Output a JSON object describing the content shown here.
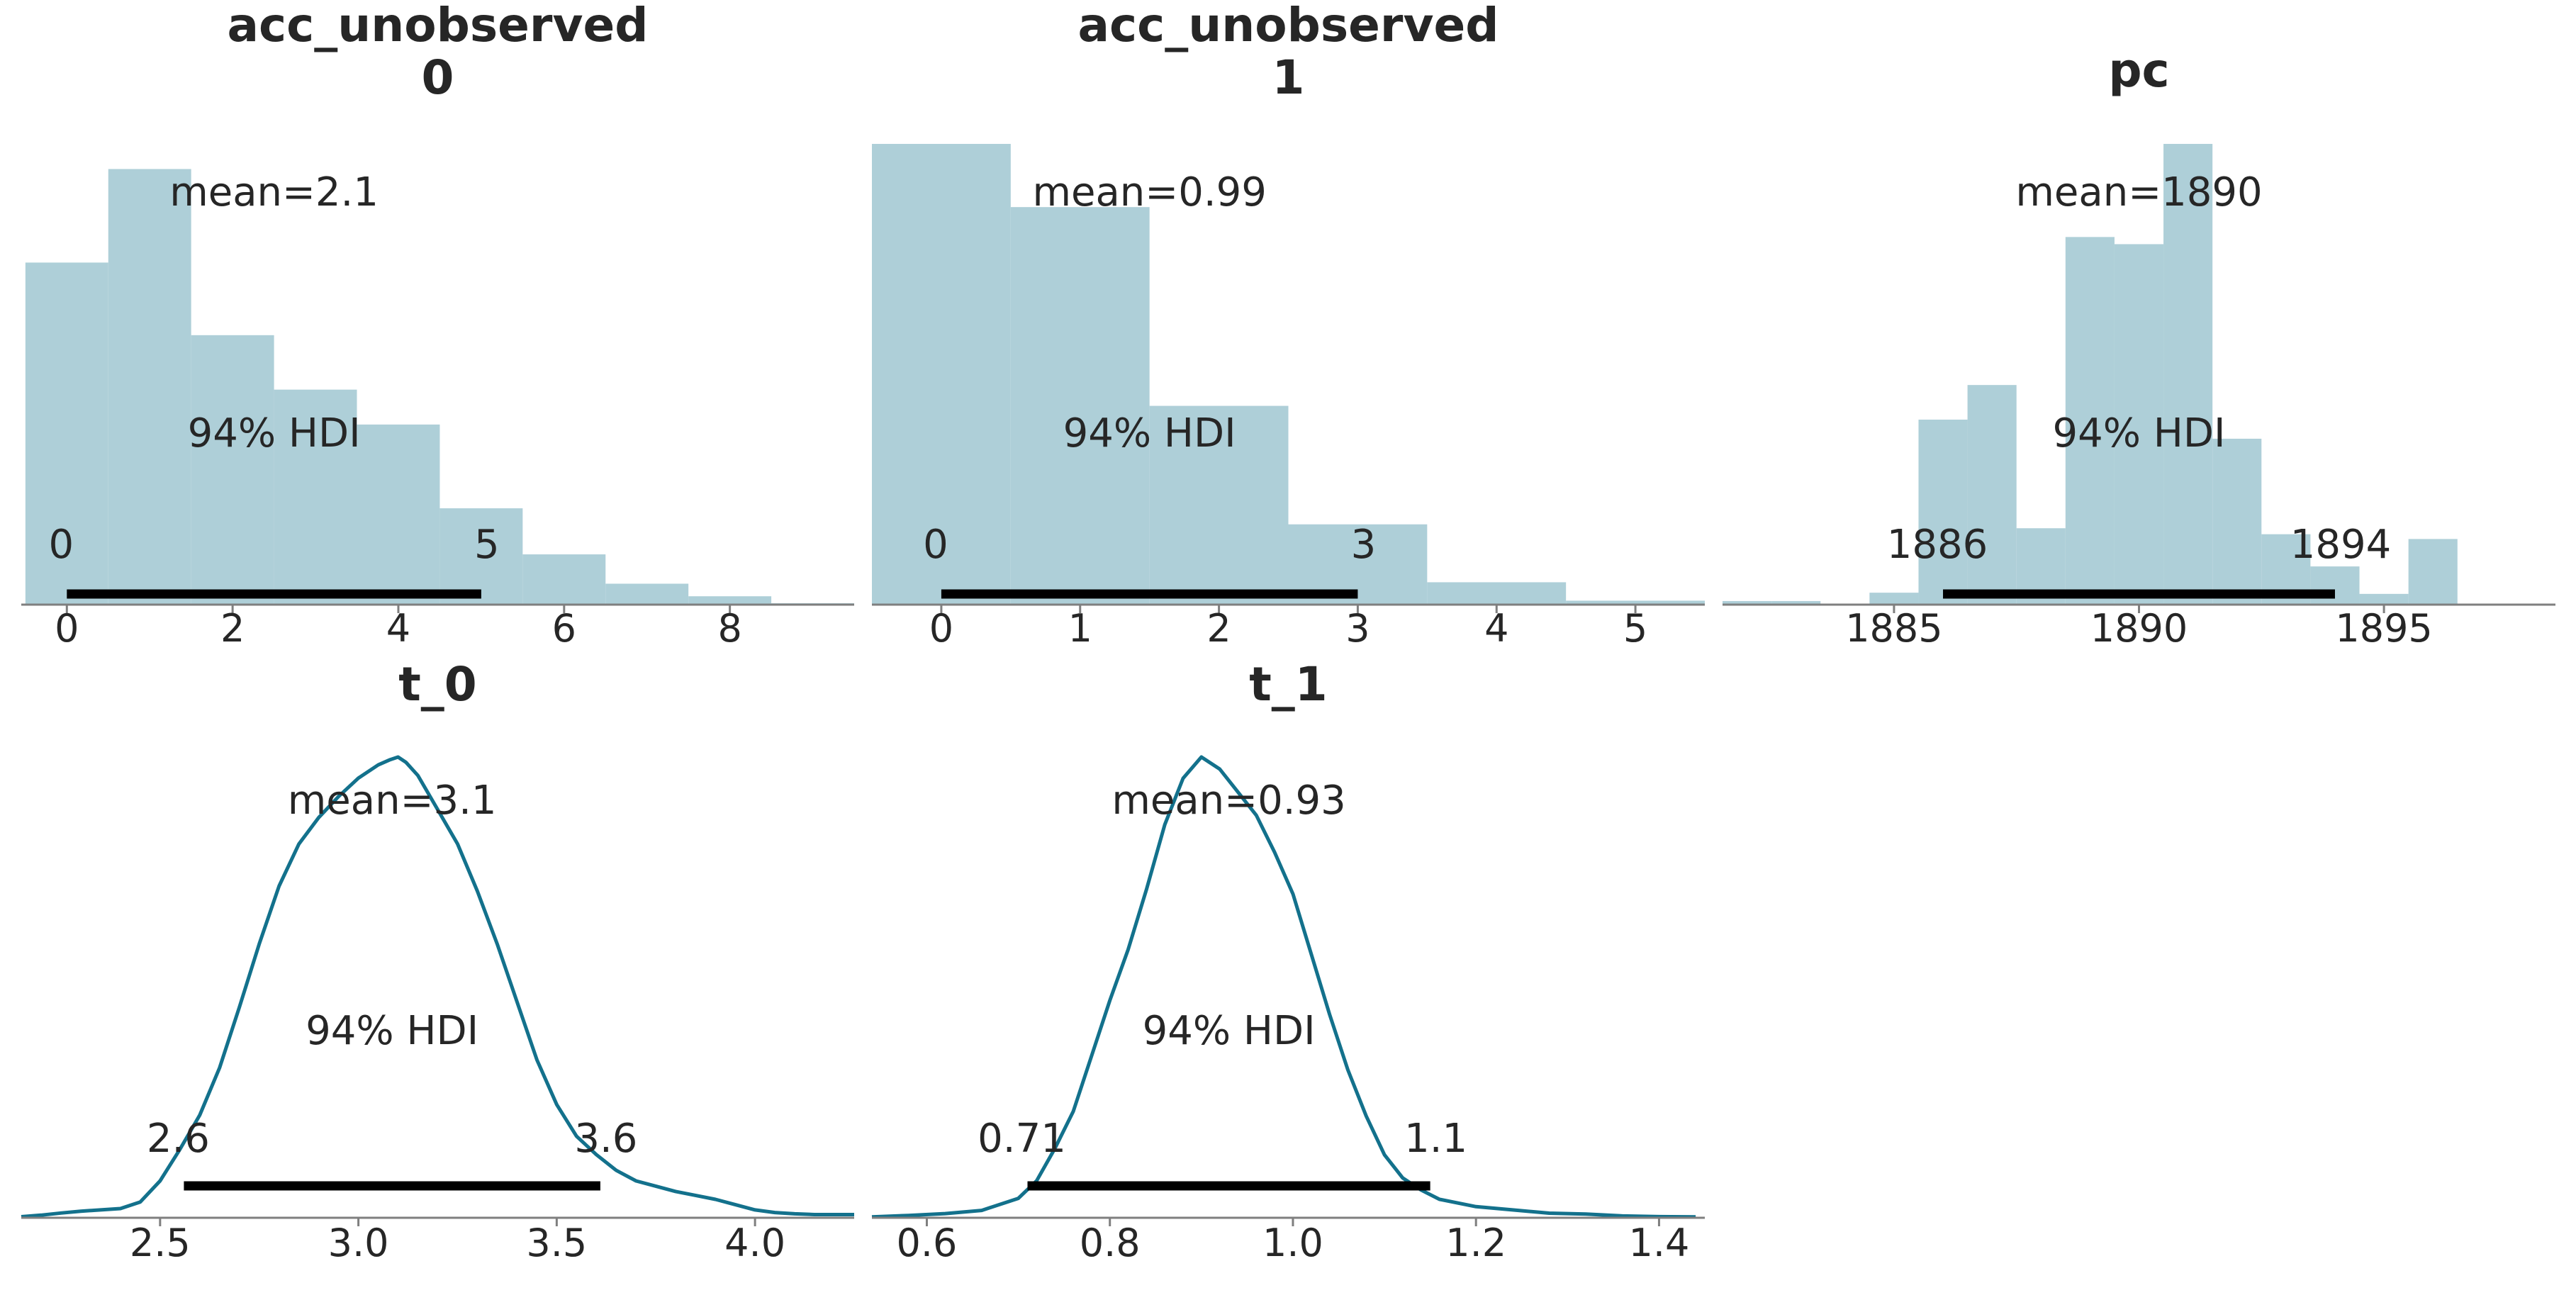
{
  "chart_data": [
    {
      "type": "bar",
      "title_lines": [
        "acc_unobserved",
        "0"
      ],
      "color": "#aecfd8",
      "bin_edges": [
        -0.5,
        0.5,
        1.5,
        2.5,
        3.5,
        4.5,
        5.5,
        6.5,
        7.5,
        8.5,
        9.5
      ],
      "values": [
        0.245,
        0.312,
        0.193,
        0.154,
        0.129,
        0.069,
        0.036,
        0.015,
        0.006,
        0.001
      ],
      "xlim": [
        -0.55,
        9.5
      ],
      "ylim": [
        0,
        0.33
      ],
      "xticks": [
        0,
        2,
        4,
        6,
        8
      ],
      "xtick_labels": [
        "0",
        "2",
        "4",
        "6",
        "8"
      ],
      "mean_label": "mean=2.1",
      "hdi_label": "94% HDI",
      "hdi": [
        0,
        5
      ],
      "hdi_low_label": "0",
      "hdi_high_label": "5"
    },
    {
      "type": "bar",
      "title_lines": [
        "acc_unobserved",
        "1"
      ],
      "color": "#aecfd8",
      "bin_edges": [
        -0.5,
        0.5,
        1.5,
        2.5,
        3.5,
        4.5,
        5.5
      ],
      "values": [
        0.35,
        0.302,
        0.151,
        0.061,
        0.017,
        0.003
      ],
      "xlim": [
        -0.5,
        5.5
      ],
      "ylim": [
        0,
        0.35
      ],
      "xticks": [
        0,
        1,
        2,
        3,
        4,
        5
      ],
      "xtick_labels": [
        "0",
        "1",
        "2",
        "3",
        "4",
        "5"
      ],
      "mean_label": "mean=0.99",
      "hdi_label": "94% HDI",
      "hdi": [
        0,
        3
      ],
      "hdi_low_label": "0",
      "hdi_high_label": "3"
    },
    {
      "type": "bar",
      "title_lines": [
        "pc"
      ],
      "color": "#aecfd8",
      "bin_edges": [
        1881.5,
        1882.5,
        1883.5,
        1884.5,
        1885.5,
        1886.5,
        1887.5,
        1888.5,
        1889.5,
        1890.5,
        1891.5,
        1892.5,
        1893.5,
        1894.5,
        1895.5,
        1896.5,
        1897.5
      ],
      "values": [
        0.003,
        0.003,
        0.0,
        0.01,
        0.155,
        0.184,
        0.064,
        0.308,
        0.302,
        0.386,
        0.139,
        0.059,
        0.032,
        0.009,
        0.055,
        0.0
      ],
      "xlim": [
        1881.5,
        1898.5
      ],
      "ylim": [
        0,
        0.386
      ],
      "xticks": [
        1885,
        1890,
        1895
      ],
      "xtick_labels": [
        "1885",
        "1890",
        "1895"
      ],
      "mean_label": "mean=1890",
      "hdi_label": "94% HDI",
      "hdi": [
        1886,
        1894
      ],
      "hdi_low_label": "1886",
      "hdi_high_label": "1894"
    },
    {
      "type": "line",
      "title_lines": [
        "t_0"
      ],
      "color": "#13718c",
      "x": [
        2.15,
        2.2,
        2.25,
        2.3,
        2.35,
        2.4,
        2.45,
        2.5,
        2.55,
        2.6,
        2.65,
        2.7,
        2.75,
        2.8,
        2.85,
        2.9,
        2.95,
        3.0,
        3.05,
        3.08,
        3.1,
        3.12,
        3.15,
        3.2,
        3.25,
        3.3,
        3.35,
        3.4,
        3.45,
        3.5,
        3.55,
        3.6,
        3.65,
        3.7,
        3.75,
        3.8,
        3.85,
        3.9,
        3.95,
        4.0,
        4.05,
        4.1,
        4.15,
        4.2,
        4.25
      ],
      "y": [
        0.004,
        0.01,
        0.018,
        0.025,
        0.03,
        0.035,
        0.06,
        0.14,
        0.26,
        0.39,
        0.57,
        0.8,
        1.04,
        1.26,
        1.42,
        1.52,
        1.6,
        1.67,
        1.72,
        1.74,
        1.75,
        1.73,
        1.68,
        1.55,
        1.42,
        1.24,
        1.04,
        0.82,
        0.6,
        0.43,
        0.31,
        0.24,
        0.18,
        0.14,
        0.12,
        0.1,
        0.085,
        0.07,
        0.05,
        0.03,
        0.02,
        0.015,
        0.012,
        0.012,
        0.012
      ],
      "xlim": [
        2.15,
        4.25
      ],
      "ylim": [
        0,
        1.75
      ],
      "xticks": [
        2.5,
        3.0,
        3.5,
        4.0
      ],
      "xtick_labels": [
        "2.5",
        "3.0",
        "3.5",
        "4.0"
      ],
      "mean_label": "mean=3.1",
      "hdi_label": "94% HDI",
      "hdi": [
        2.56,
        3.61
      ],
      "hdi_low_label": "2.6",
      "hdi_high_label": "3.6"
    },
    {
      "type": "line",
      "title_lines": [
        "t_1"
      ],
      "color": "#13718c",
      "x": [
        0.54,
        0.58,
        0.62,
        0.66,
        0.7,
        0.72,
        0.74,
        0.76,
        0.78,
        0.8,
        0.82,
        0.84,
        0.86,
        0.88,
        0.9,
        0.92,
        0.94,
        0.96,
        0.98,
        1.0,
        1.02,
        1.04,
        1.06,
        1.08,
        1.1,
        1.12,
        1.14,
        1.16,
        1.2,
        1.24,
        1.28,
        1.32,
        1.36,
        1.4,
        1.44
      ],
      "y": [
        0.01,
        0.025,
        0.045,
        0.08,
        0.21,
        0.4,
        0.75,
        1.15,
        1.75,
        2.35,
        2.9,
        3.55,
        4.25,
        4.75,
        4.98,
        4.85,
        4.6,
        4.35,
        3.95,
        3.5,
        2.85,
        2.2,
        1.6,
        1.1,
        0.68,
        0.43,
        0.3,
        0.2,
        0.12,
        0.085,
        0.05,
        0.04,
        0.02,
        0.012,
        0.01
      ],
      "xlim": [
        0.54,
        1.45
      ],
      "ylim": [
        0,
        4.98
      ],
      "xticks": [
        0.6,
        0.8,
        1.0,
        1.2,
        1.4
      ],
      "xtick_labels": [
        "0.6",
        "0.8",
        "1.0",
        "1.2",
        "1.4"
      ],
      "mean_label": "mean=0.93",
      "hdi_label": "94% HDI",
      "hdi": [
        0.71,
        1.15
      ],
      "hdi_low_label": "0.71",
      "hdi_high_label": "1.1"
    }
  ]
}
